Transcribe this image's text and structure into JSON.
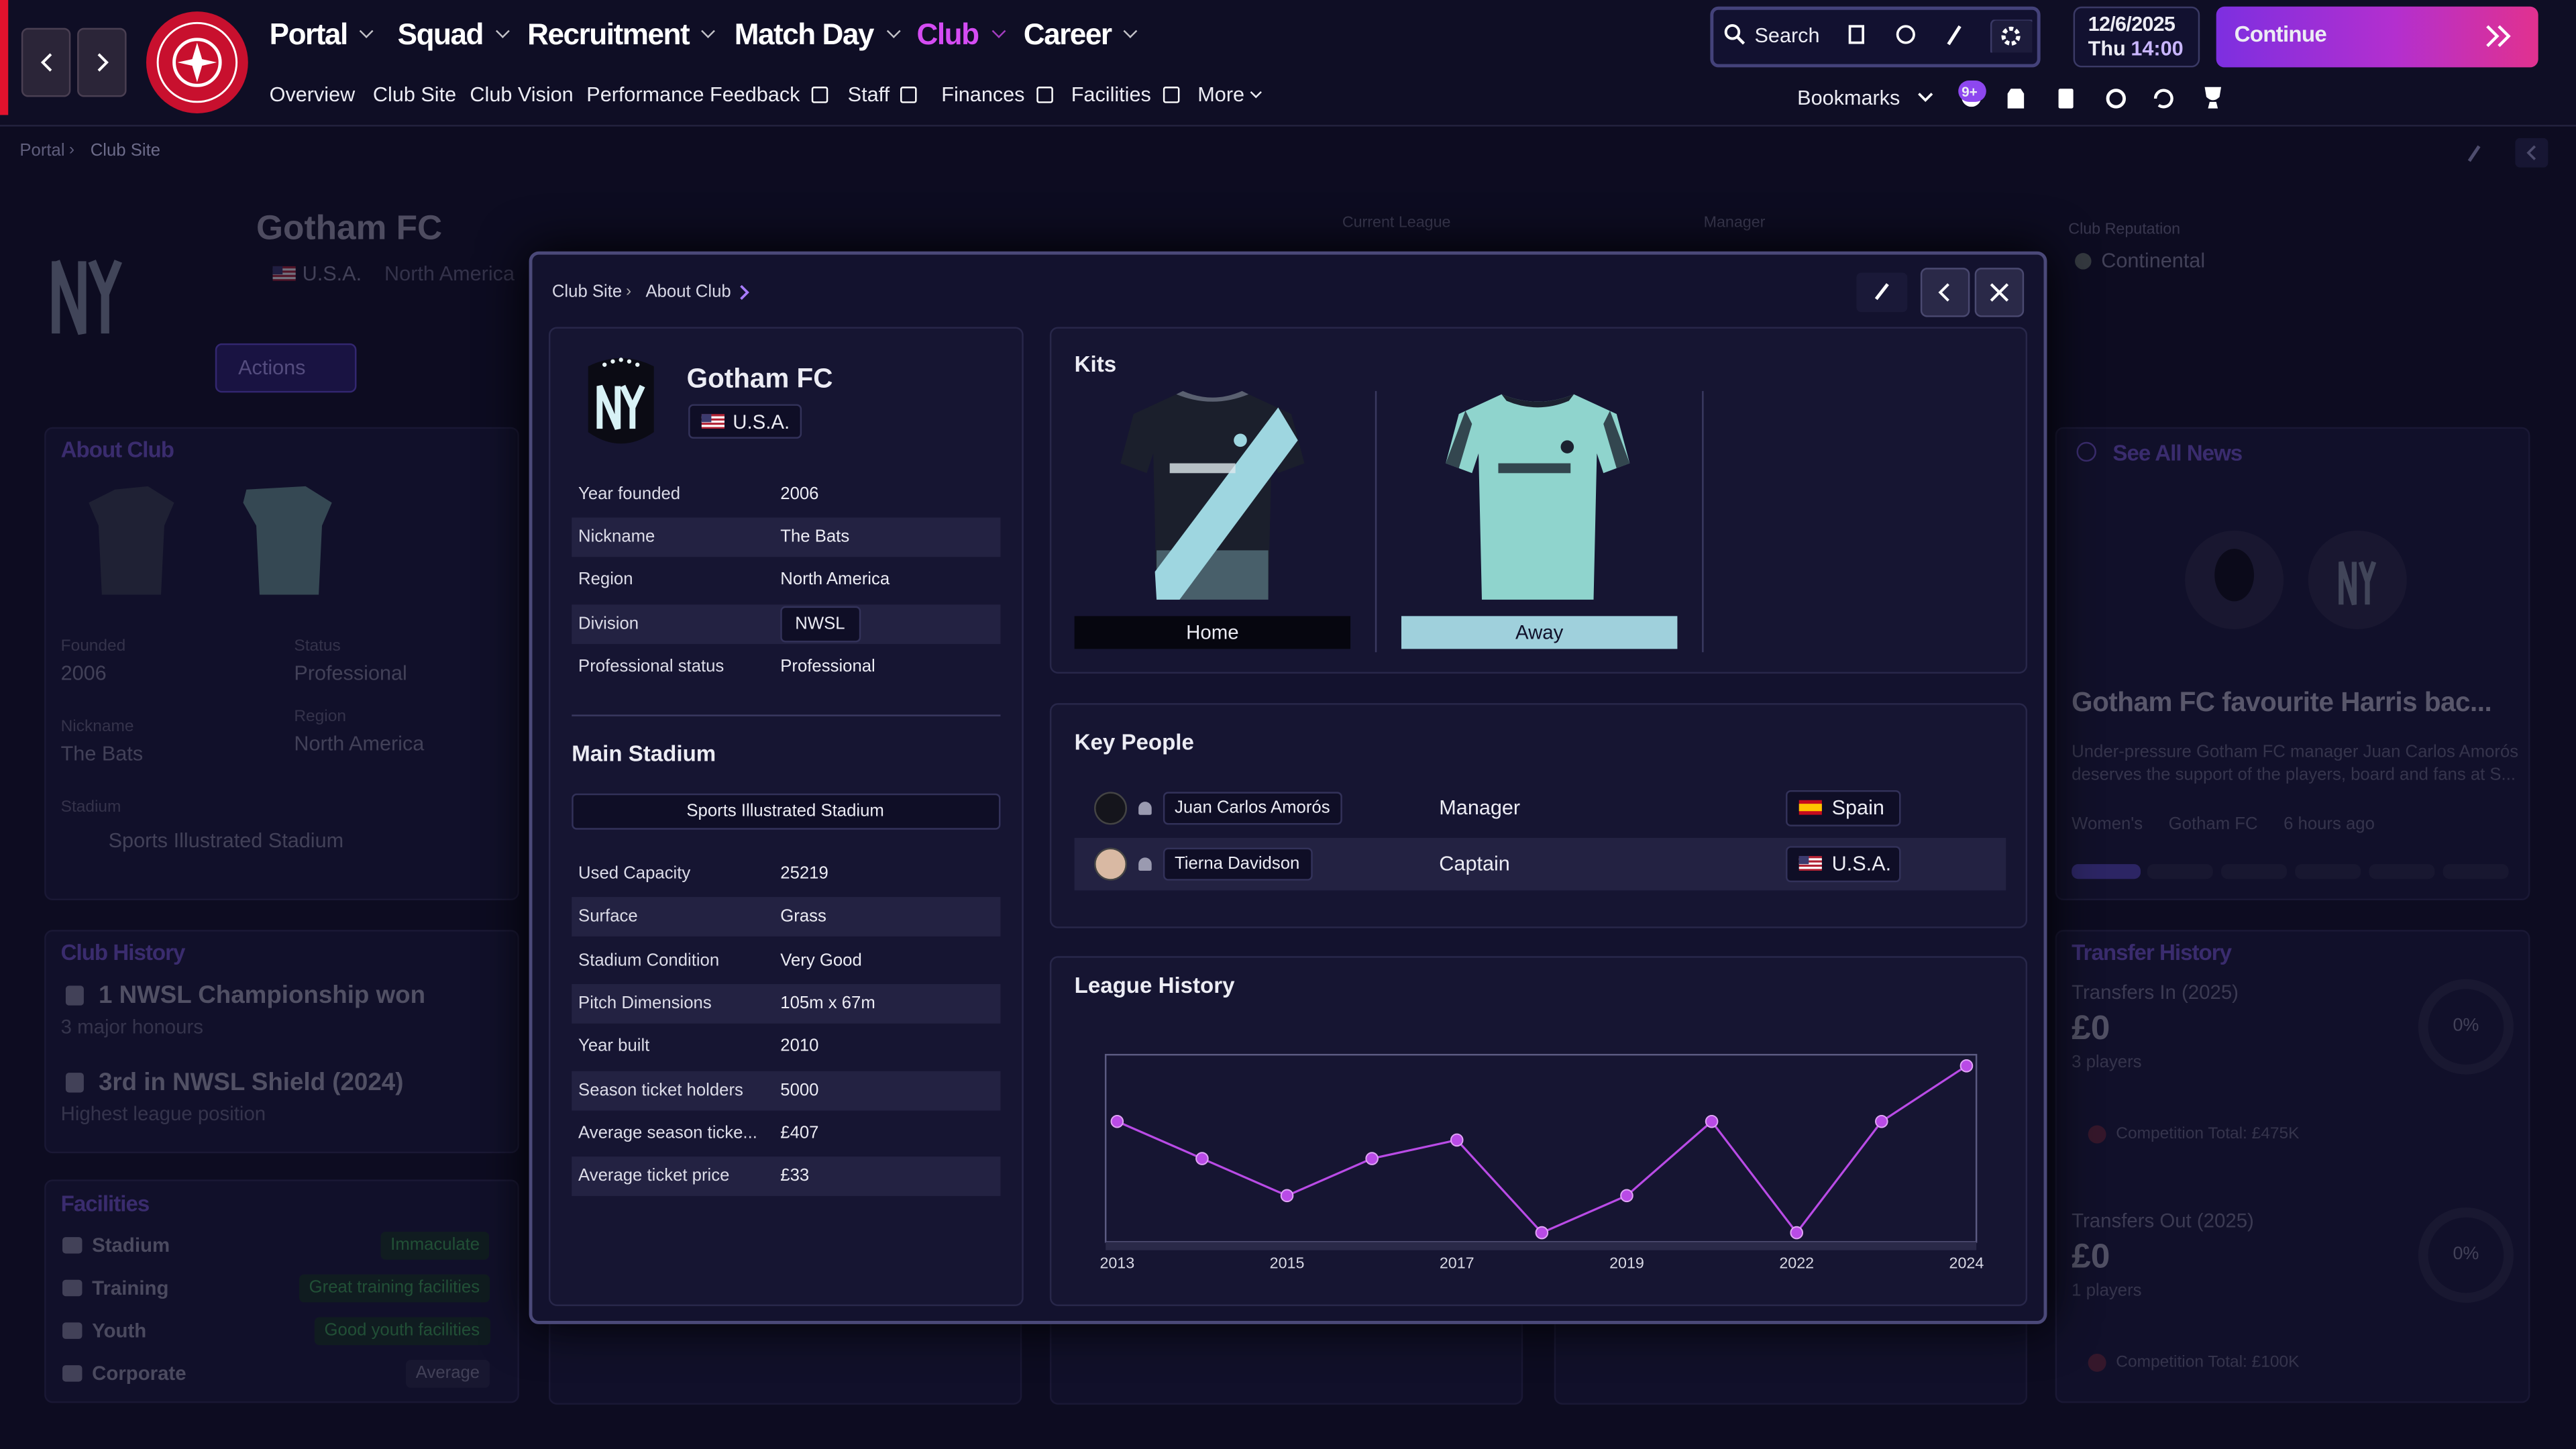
{
  "header": {
    "menu": [
      {
        "label": "Portal"
      },
      {
        "label": "Squad"
      },
      {
        "label": "Recruitment"
      },
      {
        "label": "Match Day"
      },
      {
        "label": "Club",
        "active": true
      },
      {
        "label": "Career"
      }
    ],
    "submenu": [
      {
        "label": "Overview"
      },
      {
        "label": "Club Site"
      },
      {
        "label": "Club Vision"
      },
      {
        "label": "Performance Feedback",
        "external": true
      },
      {
        "label": "Staff",
        "external": true
      },
      {
        "label": "Finances",
        "external": true
      },
      {
        "label": "Facilities",
        "external": true
      },
      {
        "label": "More",
        "dropdown": true
      }
    ],
    "search": "Search",
    "date": "12/6/2025",
    "weekday": "Thu",
    "time": "14:00",
    "continue": "Continue",
    "bookmarks": "Bookmarks",
    "badge": "9+"
  },
  "breadcrumb": [
    "Portal",
    "Club Site"
  ],
  "background": {
    "club_name": "Gotham FC",
    "nation": "U.S.A.",
    "continent": "North America",
    "actions": "Actions",
    "current_league": "Current League",
    "manager": "Manager",
    "club_reputation": "Club Reputation",
    "reputation": "Continental",
    "about_club": {
      "title": "About Club",
      "fields": [
        {
          "label": "Founded",
          "value": "2006"
        },
        {
          "label": "Status",
          "value": "Professional"
        },
        {
          "label": "Nickname",
          "value": "The Bats"
        },
        {
          "label": "Region",
          "value": "North America"
        }
      ],
      "stadium_label": "Stadium",
      "stadium": "Sports Illustrated Stadium"
    },
    "club_history": {
      "title": "Club History",
      "items": [
        {
          "title": "1 NWSL Championship won",
          "subtitle": "3 major honours"
        },
        {
          "title": "3rd in NWSL Shield (2024)",
          "subtitle": "Highest league position"
        }
      ]
    },
    "facilities": {
      "title": "Facilities",
      "items": [
        {
          "label": "Stadium",
          "value": "Immaculate"
        },
        {
          "label": "Training",
          "value": "Great training facilities"
        },
        {
          "label": "Youth",
          "value": "Good youth facilities"
        },
        {
          "label": "Corporate",
          "value": "Average"
        }
      ]
    },
    "news": {
      "link": "See All News",
      "headline": "Gotham FC favourite Harris bac...",
      "summary": [
        "Under-pressure Gotham FC manager Juan Carlos Amorós",
        "deserves the support of the players, board and fans at S..."
      ],
      "tags": [
        "Women's",
        "Gotham FC",
        "6 hours ago"
      ]
    },
    "transfers": {
      "title": "Transfer History",
      "blocks": [
        {
          "label": "Transfers In (2025)",
          "amount": "£0",
          "players": "3 players",
          "percent": "0%",
          "competition_total": "Competition Total: £475K"
        },
        {
          "label": "Transfers Out (2025)",
          "amount": "£0",
          "players": "1 players",
          "percent": "0%",
          "competition_total": "Competition Total: £100K"
        }
      ]
    }
  },
  "modal": {
    "breadcrumb": [
      "Club Site",
      "About Club"
    ],
    "club": {
      "name": "Gotham FC",
      "nation": "U.S.A."
    },
    "info": [
      {
        "label": "Year founded",
        "value": "2006"
      },
      {
        "label": "Nickname",
        "value": "The Bats"
      },
      {
        "label": "Region",
        "value": "North America"
      },
      {
        "label": "Division",
        "value": "NWSL"
      },
      {
        "label": "Professional status",
        "value": "Professional"
      }
    ],
    "stadium_title": "Main Stadium",
    "stadium_name": "Sports Illustrated Stadium",
    "stadium_info": [
      {
        "label": "Used Capacity",
        "value": "25219"
      },
      {
        "label": "Surface",
        "value": "Grass"
      },
      {
        "label": "Stadium Condition",
        "value": "Very Good"
      },
      {
        "label": "Pitch Dimensions",
        "value": "105m x 67m"
      },
      {
        "label": "Year built",
        "value": "2010"
      },
      {
        "label": "Season ticket holders",
        "value": "5000"
      },
      {
        "label": "Average season ticke...",
        "value": "£407"
      },
      {
        "label": "Average ticket price",
        "value": "£33"
      }
    ],
    "kits": {
      "title": "Kits",
      "items": [
        "Home",
        "Away"
      ]
    },
    "key_people": {
      "title": "Key People",
      "people": [
        {
          "name": "Juan Carlos Amorós",
          "role": "Manager",
          "nation": "Spain"
        },
        {
          "name": "Tierna Davidson",
          "role": "Captain",
          "nation": "U.S.A."
        }
      ]
    }
  },
  "chart_data": {
    "type": "line",
    "title": "League History",
    "categories": [
      "2013",
      null,
      "2015",
      null,
      "2017",
      null,
      "2019",
      null,
      "2022",
      null,
      "2024"
    ],
    "values": [
      6,
      8,
      10,
      8,
      7,
      12,
      10,
      6,
      12,
      6,
      3
    ],
    "color": "#b94be6",
    "ylim": [
      12.5,
      2.4
    ]
  }
}
